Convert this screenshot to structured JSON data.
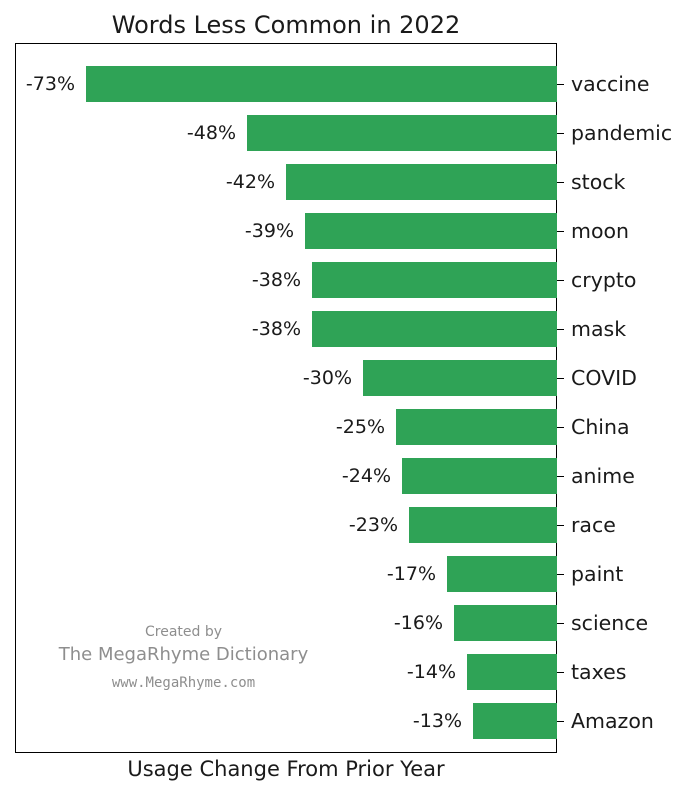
{
  "chart_data": {
    "type": "bar",
    "orientation": "horizontal",
    "title": "Words Less Common in 2022",
    "xlabel": "Usage Change From Prior Year",
    "categories": [
      "vaccine",
      "pandemic",
      "stock",
      "moon",
      "crypto",
      "mask",
      "COVID",
      "China",
      "anime",
      "race",
      "paint",
      "science",
      "taxes",
      "Amazon"
    ],
    "values": [
      -73,
      -48,
      -42,
      -39,
      -38,
      -38,
      -30,
      -25,
      -24,
      -23,
      -17,
      -16,
      -14,
      -13
    ],
    "value_labels": [
      "-73%",
      "-48%",
      "-42%",
      "-39%",
      "-38%",
      "-38%",
      "-30%",
      "-25%",
      "-24%",
      "-23%",
      "-17%",
      "-16%",
      "-14%",
      "-13%"
    ],
    "xlim": [
      -84,
      0
    ],
    "grid": false,
    "legend_position": "none",
    "bar_color": "#2fa356",
    "axis_color": "#000000",
    "text_color": "#1a1a1a"
  },
  "watermark": {
    "line1": "Created by",
    "line2": "The MegaRhyme Dictionary",
    "line3": "www.MegaRhyme.com",
    "color": "#8e8e8e"
  }
}
